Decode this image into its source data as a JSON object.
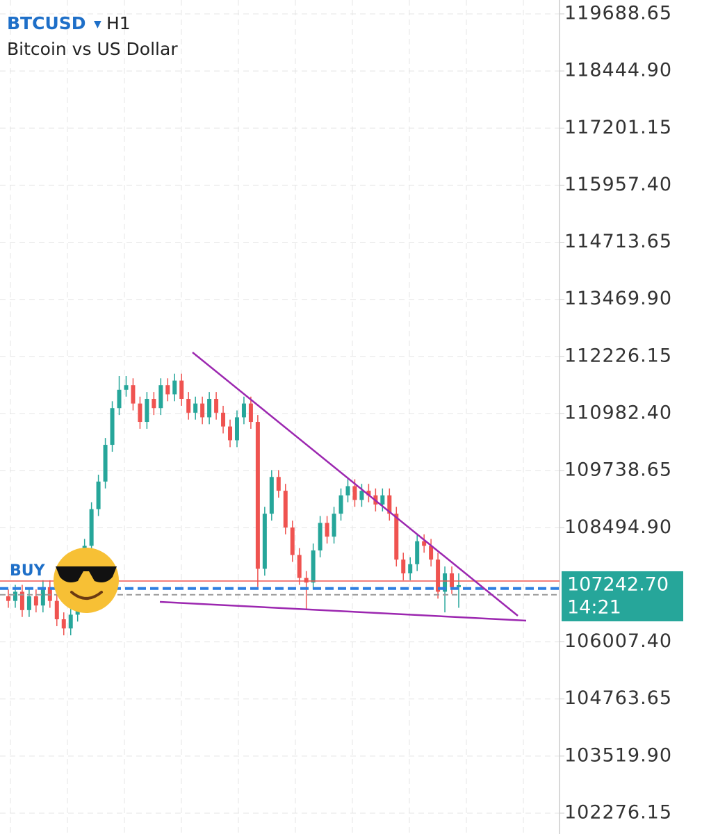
{
  "chart_data": {
    "type": "candlestick",
    "symbol": "BTCUSD",
    "timeframe": "H1",
    "subtitle": "Bitcoin vs US Dollar",
    "order_label": "BUY",
    "current_price": {
      "value": 107242.7,
      "label": "107242.70"
    },
    "countdown": "14:21",
    "buy_price": 107170,
    "up_color": "#26a69a",
    "down_color": "#ef5350",
    "grid": true,
    "ylim": [
      101822,
      119991
    ],
    "yticks": [
      {
        "value": 119688.65,
        "label": "119688.65"
      },
      {
        "value": 118444.9,
        "label": "118444.90"
      },
      {
        "value": 117201.15,
        "label": "117201.15"
      },
      {
        "value": 115957.4,
        "label": "115957.40"
      },
      {
        "value": 114713.65,
        "label": "114713.65"
      },
      {
        "value": 113469.9,
        "label": "113469.90"
      },
      {
        "value": 112226.15,
        "label": "112226.15"
      },
      {
        "value": 110982.4,
        "label": "110982.40"
      },
      {
        "value": 109738.65,
        "label": "109738.65"
      },
      {
        "value": 108494.9,
        "label": "108494.90"
      },
      {
        "value": 106007.4,
        "label": "106007.40"
      },
      {
        "value": 104763.65,
        "label": "104763.65"
      },
      {
        "value": 103519.9,
        "label": "103519.90"
      },
      {
        "value": 102276.15,
        "label": "102276.15"
      }
    ],
    "open": [
      107000,
      106900,
      107100,
      106700,
      107000,
      106800,
      107200,
      106900,
      106500,
      106300,
      106600,
      107300,
      108100,
      108900,
      109500,
      110300,
      111100,
      111500,
      111600,
      111200,
      110800,
      111300,
      111100,
      111600,
      111400,
      111700,
      111300,
      111000,
      111200,
      110900,
      111300,
      111000,
      110700,
      110400,
      110900,
      111200,
      110800,
      107600,
      108800,
      109600,
      109300,
      108500,
      107900,
      107400,
      107300,
      108000,
      108600,
      108300,
      108800,
      109200,
      109400,
      109100,
      109300,
      109200,
      109000,
      109200,
      108800,
      107800,
      107500,
      107700,
      108200,
      108100,
      107800,
      107100,
      107500,
      107200
    ],
    "high": [
      107150,
      107250,
      107250,
      107150,
      107150,
      107350,
      107350,
      107050,
      106650,
      106750,
      107450,
      108250,
      109050,
      109650,
      110450,
      111250,
      111800,
      111800,
      111750,
      111350,
      111450,
      111450,
      111750,
      111750,
      111850,
      111850,
      111450,
      111350,
      111350,
      111450,
      111450,
      111150,
      110850,
      111050,
      111350,
      111350,
      110950,
      108950,
      109750,
      109750,
      109450,
      108650,
      108050,
      107550,
      108150,
      108750,
      108750,
      108950,
      109350,
      109550,
      109550,
      109450,
      109450,
      109350,
      109350,
      109350,
      108950,
      107950,
      107850,
      108350,
      108350,
      108250,
      107950,
      107650,
      107650,
      107500
    ],
    "low": [
      106750,
      106750,
      106550,
      106550,
      106650,
      106650,
      106750,
      106350,
      106150,
      106150,
      106450,
      107150,
      107950,
      108750,
      109350,
      110150,
      110950,
      111350,
      111050,
      110650,
      110650,
      110950,
      110950,
      111250,
      111250,
      111150,
      110850,
      110850,
      110750,
      110750,
      110850,
      110550,
      110250,
      110250,
      110750,
      110650,
      107200,
      107450,
      108650,
      109150,
      108350,
      107750,
      107250,
      106700,
      107150,
      107850,
      108150,
      108150,
      108650,
      109050,
      108950,
      108950,
      109050,
      108850,
      108850,
      108650,
      107650,
      107350,
      107350,
      107550,
      107950,
      107650,
      106950,
      106650,
      107050,
      106750
    ],
    "close": [
      106900,
      107100,
      106700,
      107000,
      106800,
      107200,
      106900,
      106500,
      106300,
      106600,
      107300,
      108100,
      108900,
      109500,
      110300,
      111100,
      111500,
      111600,
      111200,
      110800,
      111300,
      111100,
      111600,
      111400,
      111700,
      111300,
      111000,
      111200,
      110900,
      111300,
      111000,
      110700,
      110400,
      110900,
      111200,
      110800,
      107600,
      108800,
      109600,
      109300,
      108500,
      107900,
      107400,
      107300,
      108000,
      108600,
      108300,
      108800,
      109200,
      109400,
      109100,
      109300,
      109200,
      109000,
      109200,
      108800,
      107800,
      107500,
      107700,
      108200,
      108100,
      107800,
      107100,
      107500,
      107200,
      107243
    ]
  }
}
